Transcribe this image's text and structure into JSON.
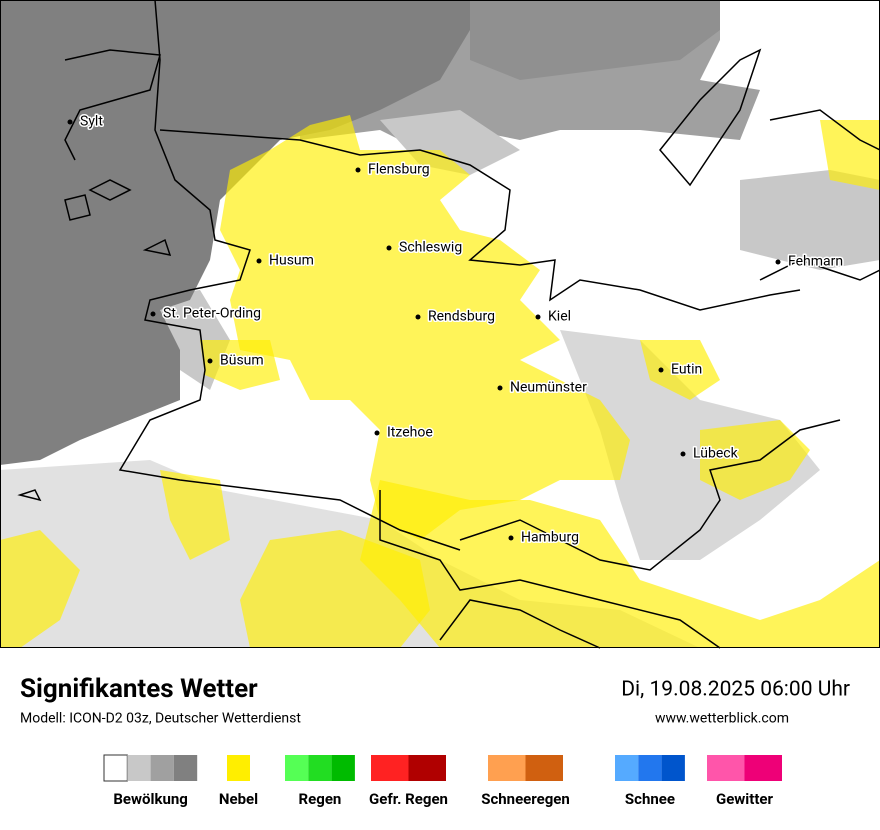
{
  "map": {
    "cities": [
      "Sylt",
      "Flensburg",
      "Schleswig",
      "Husum",
      "Fehmarn",
      "St. Peter-Ording",
      "Rendsburg",
      "Kiel",
      "Büsum",
      "Eutin",
      "Neumünster",
      "Itzehoe",
      "Lübeck",
      "Hamburg"
    ]
  },
  "footer": {
    "title": "Signifikantes Wetter",
    "subtitle": "Modell: ICON-D2 03z, Deutscher Wetterdienst",
    "datetime": "Di, 19.08.2025 06:00 Uhr",
    "url": "www.wetterblick.com"
  },
  "legend": [
    {
      "label": "Bewölkung",
      "colors": [
        "#ffffff",
        "#c8c8c8",
        "#a0a0a0",
        "#808080"
      ]
    },
    {
      "label": "Nebel",
      "colors": [
        "#ffee00"
      ]
    },
    {
      "label": "Regen",
      "colors": [
        "#55ff55",
        "#22dd22",
        "#00bb00"
      ]
    },
    {
      "label": "Gefr. Regen",
      "colors": [
        "#ff2222",
        "#b00000"
      ]
    },
    {
      "label": "Schneeregen",
      "colors": [
        "#ffa050",
        "#d06010"
      ]
    },
    {
      "label": "Schnee",
      "colors": [
        "#55aaff",
        "#2277ee",
        "#0055cc"
      ]
    },
    {
      "label": "Gewitter",
      "colors": [
        "#ff55aa",
        "#ee0077"
      ]
    }
  ]
}
